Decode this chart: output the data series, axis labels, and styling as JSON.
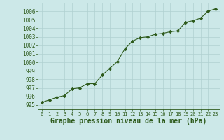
{
  "x": [
    0,
    1,
    2,
    3,
    4,
    5,
    6,
    7,
    8,
    9,
    10,
    11,
    12,
    13,
    14,
    15,
    16,
    17,
    18,
    19,
    20,
    21,
    22,
    23
  ],
  "y": [
    995.3,
    995.6,
    995.9,
    996.1,
    996.9,
    997.0,
    997.5,
    997.5,
    998.5,
    999.3,
    1000.1,
    1001.6,
    1002.5,
    1002.9,
    1003.0,
    1003.3,
    1003.4,
    1003.6,
    1003.7,
    1004.7,
    1004.9,
    1005.2,
    1006.0,
    1006.3
  ],
  "line_color": "#2d5a1b",
  "marker": "D",
  "marker_size": 2.2,
  "bg_color": "#cce8e8",
  "grid_color": "#b0d0d0",
  "xlabel": "Graphe pression niveau de la mer (hPa)",
  "xlabel_fontsize": 7,
  "xlabel_fontweight": "bold",
  "xlabel_color": "#2d5a1b",
  "tick_color": "#2d5a1b",
  "ytick_fontsize": 5.5,
  "xtick_fontsize": 5.0,
  "ylim": [
    994.5,
    1007.0
  ],
  "xlim": [
    -0.5,
    23.5
  ],
  "yticks": [
    995,
    996,
    997,
    998,
    999,
    1000,
    1001,
    1002,
    1003,
    1004,
    1005,
    1006
  ],
  "xticks": [
    0,
    1,
    2,
    3,
    4,
    5,
    6,
    7,
    8,
    9,
    10,
    11,
    12,
    13,
    14,
    15,
    16,
    17,
    18,
    19,
    20,
    21,
    22,
    23
  ]
}
